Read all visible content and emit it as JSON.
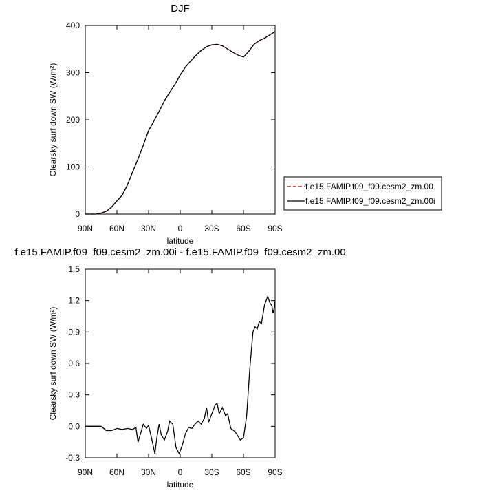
{
  "chart_data": [
    {
      "type": "line",
      "title": "DJF",
      "x_label": "latitude",
      "y_label": "Clearsky surf down SW (W/m²)",
      "x": [
        90,
        85,
        80,
        75,
        70,
        65,
        60,
        55,
        50,
        45,
        40,
        35,
        30,
        25,
        20,
        15,
        10,
        5,
        0,
        -5,
        -10,
        -15,
        -20,
        -25,
        -30,
        -35,
        -40,
        -45,
        -50,
        -55,
        -60,
        -65,
        -70,
        -75,
        -80,
        -85,
        -90
      ],
      "xlim": [
        90,
        -90
      ],
      "xticks": [
        {
          "value": 90,
          "label": "90N"
        },
        {
          "value": 60,
          "label": "60N"
        },
        {
          "value": 30,
          "label": "30N"
        },
        0,
        {
          "value": -30,
          "label": "30S"
        },
        {
          "value": -60,
          "label": "60S"
        },
        {
          "value": -90,
          "label": "90S"
        }
      ],
      "ylim": [
        0,
        400
      ],
      "yticks": [
        0,
        100,
        200,
        300,
        400
      ],
      "legend": "outside right",
      "series": [
        {
          "name": "f.e15.FAMIP.f09_f09.cesm2_zm.00",
          "color": "#cc0000",
          "dashed": true,
          "values": [
            0,
            0,
            0,
            2,
            6,
            15,
            28,
            40,
            62,
            90,
            117,
            146,
            177,
            197,
            218,
            240,
            258,
            275,
            295,
            312,
            325,
            337,
            347,
            355,
            359,
            360,
            357,
            350,
            343,
            337,
            333,
            345,
            360,
            368,
            373,
            380,
            387
          ]
        },
        {
          "name": "f.e15.FAMIP.f09_f09.cesm2_zm.00i",
          "color": "#000000",
          "dashed": false,
          "values": [
            0,
            0,
            0,
            2,
            6,
            15,
            28,
            40,
            62,
            90,
            117,
            146,
            177,
            197,
            218,
            240,
            258,
            275,
            295,
            312,
            325,
            337,
            347,
            355,
            359,
            360,
            357,
            350,
            343,
            337,
            333,
            345,
            360,
            368,
            373,
            380,
            387
          ]
        }
      ]
    },
    {
      "type": "line",
      "title": "f.e15.FAMIP.f09_f09.cesm2_zm.00i - f.e15.FAMIP.f09_f09.cesm2_zm.00",
      "x_label": "latitude",
      "y_label": "Clearsky surf down SW (W/m²)",
      "x": [
        90,
        80,
        75,
        70,
        65,
        60,
        55,
        50,
        45,
        42,
        40,
        37,
        35,
        32,
        30,
        27,
        24,
        22,
        20,
        18,
        15,
        12,
        10,
        7,
        4,
        1,
        -2,
        -5,
        -8,
        -11,
        -14,
        -17,
        -20,
        -23,
        -25,
        -27,
        -30,
        -33,
        -35,
        -37,
        -40,
        -43,
        -45,
        -48,
        -52,
        -57,
        -60,
        -63,
        -66,
        -69,
        -71,
        -73,
        -75,
        -77,
        -80,
        -83,
        -85,
        -87,
        -88,
        -89,
        -90
      ],
      "xlim": [
        90,
        -90
      ],
      "xticks": [
        {
          "value": 90,
          "label": "90N"
        },
        {
          "value": 60,
          "label": "60N"
        },
        {
          "value": 30,
          "label": "30N"
        },
        0,
        {
          "value": -30,
          "label": "30S"
        },
        {
          "value": -60,
          "label": "60S"
        },
        {
          "value": -90,
          "label": "90S"
        }
      ],
      "ylim": [
        -0.3,
        1.5
      ],
      "yticks": [
        -0.3,
        {
          "value": 0,
          "label": "0.0"
        },
        0.3,
        0.6,
        0.9,
        1.2,
        1.5
      ],
      "series": [
        {
          "color": "#000000",
          "dashed": false,
          "values": [
            0,
            0,
            0,
            -0.04,
            -0.04,
            -0.02,
            -0.03,
            -0.02,
            -0.03,
            -0.01,
            -0.15,
            -0.05,
            0.02,
            -0.02,
            0.01,
            -0.12,
            -0.26,
            -0.1,
            0.02,
            -0.08,
            -0.13,
            -0.05,
            0.05,
            0.02,
            -0.2,
            -0.26,
            -0.18,
            -0.07,
            -0.01,
            -0.02,
            0.02,
            0.05,
            0.02,
            0.08,
            0.18,
            0.04,
            0.12,
            0.2,
            0.22,
            0.12,
            0.18,
            0.1,
            0.12,
            -0.02,
            -0.05,
            -0.13,
            -0.11,
            0.1,
            0.55,
            0.9,
            0.95,
            0.93,
            1.0,
            0.98,
            1.16,
            1.24,
            1.18,
            1.15,
            1.08,
            1.12,
            1.2
          ]
        }
      ]
    }
  ]
}
